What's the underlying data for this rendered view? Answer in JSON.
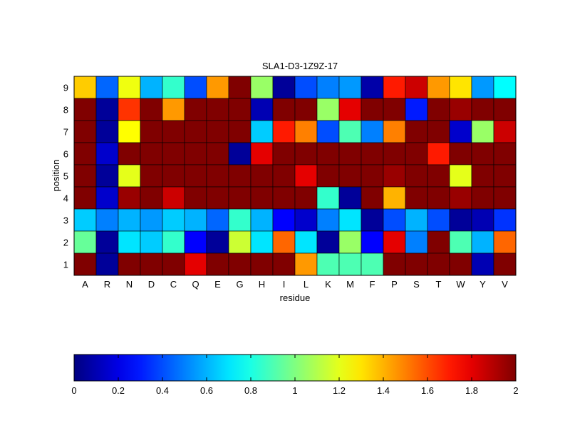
{
  "chart_data": {
    "type": "heatmap",
    "title": "SLA1-D3-1Z9Z-17",
    "xlabel": "residue",
    "ylabel": "position",
    "colormap": "jet",
    "clim": [
      0,
      2
    ],
    "colorbar": {
      "placement": "bottom",
      "ticks": [
        0,
        0.2,
        0.4,
        0.6,
        0.8,
        1,
        1.2,
        1.4,
        1.6,
        1.8,
        2
      ],
      "tick_labels": [
        "0",
        "0.2",
        "0.4",
        "0.6",
        "0.8",
        "1",
        "1.2",
        "1.4",
        "1.6",
        "1.8",
        "2"
      ]
    },
    "grid": true,
    "legend": "none",
    "x": [
      "A",
      "R",
      "N",
      "D",
      "C",
      "Q",
      "E",
      "G",
      "H",
      "I",
      "L",
      "K",
      "M",
      "F",
      "P",
      "S",
      "T",
      "W",
      "Y",
      "V"
    ],
    "y": [
      "9",
      "8",
      "7",
      "6",
      "5",
      "4",
      "3",
      "2",
      "1"
    ],
    "values": [
      [
        1.35,
        0.45,
        1.22,
        0.6,
        0.85,
        0.4,
        1.45,
        2.0,
        1.05,
        0.05,
        0.4,
        0.5,
        0.55,
        0.08,
        1.7,
        1.85,
        1.45,
        1.3,
        0.55,
        0.75
      ],
      [
        2.0,
        0.05,
        1.65,
        2.0,
        1.45,
        2.0,
        2.0,
        2.0,
        0.1,
        2.0,
        2.0,
        1.05,
        1.8,
        2.0,
        2.0,
        0.3,
        2.0,
        1.95,
        2.0,
        2.0
      ],
      [
        2.0,
        0.05,
        1.25,
        2.0,
        2.0,
        2.0,
        2.0,
        2.0,
        0.65,
        1.7,
        1.5,
        0.4,
        0.9,
        0.5,
        1.5,
        2.0,
        2.0,
        0.15,
        1.05,
        1.85
      ],
      [
        2.0,
        0.15,
        2.0,
        2.0,
        2.0,
        2.0,
        2.0,
        0.05,
        1.8,
        2.0,
        2.0,
        2.0,
        2.0,
        2.0,
        2.0,
        2.0,
        1.7,
        2.0,
        2.0,
        2.0
      ],
      [
        2.0,
        0.05,
        1.2,
        2.0,
        2.0,
        2.0,
        2.0,
        2.0,
        2.0,
        2.0,
        1.8,
        2.0,
        2.0,
        2.0,
        1.95,
        2.0,
        2.0,
        1.2,
        2.0,
        2.0
      ],
      [
        2.0,
        0.15,
        1.95,
        2.0,
        1.85,
        2.0,
        2.0,
        2.0,
        2.0,
        2.0,
        2.0,
        0.85,
        0.05,
        2.0,
        1.4,
        2.0,
        2.0,
        1.95,
        2.0,
        2.0
      ],
      [
        0.65,
        0.5,
        0.6,
        0.55,
        0.65,
        0.6,
        0.45,
        0.85,
        0.6,
        0.25,
        0.15,
        0.5,
        0.7,
        0.05,
        0.4,
        0.6,
        0.4,
        0.05,
        0.1,
        0.35
      ],
      [
        0.95,
        0.05,
        0.7,
        0.65,
        0.85,
        0.25,
        0.05,
        1.15,
        0.7,
        1.55,
        0.7,
        0.05,
        1.05,
        0.25,
        1.8,
        0.5,
        2.0,
        0.9,
        0.6,
        1.55
      ],
      [
        2.0,
        0.05,
        2.0,
        2.0,
        2.0,
        1.8,
        2.0,
        2.0,
        2.0,
        2.0,
        1.45,
        0.9,
        0.9,
        0.9,
        2.0,
        2.0,
        2.0,
        2.0,
        0.1,
        2.0
      ]
    ]
  }
}
